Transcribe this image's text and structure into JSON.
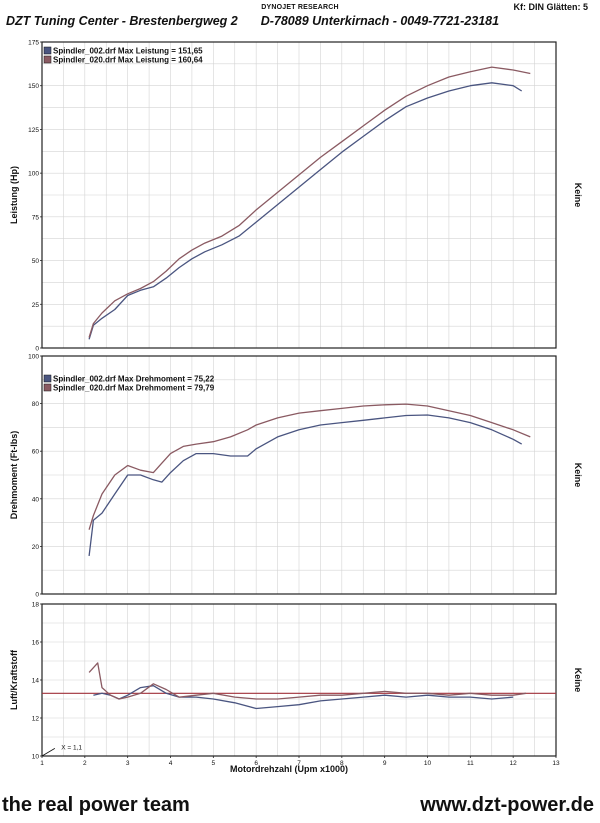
{
  "header": {
    "brand": "DYNOJET RESEARCH",
    "smoothing": "Kf: DIN  Glätten: 5",
    "company": "DZT Tuning Center - Brestenbergweg 2",
    "address": "D-78089 Unterkirnach - 0049-7721-23181"
  },
  "footer": {
    "slogan": "the real power team",
    "website": "www.dzt-power.de"
  },
  "colors": {
    "run_002": "#4a5580",
    "run_020": "#8a5a62",
    "afr_target": "#a0303a",
    "grid": "#d4d4d4",
    "frame": "#222222"
  },
  "chart_data": [
    {
      "type": "line",
      "ylabel": "Leistung (Hp)",
      "right_label": "Keine",
      "ylim": [
        0,
        175
      ],
      "yticks": [
        0,
        25,
        50,
        75,
        100,
        125,
        150,
        175
      ],
      "xlim": [
        1,
        13
      ],
      "legend_position": "top-left",
      "series": [
        {
          "name": "Spindler_002.drf Max Leistung = 151,65",
          "x": [
            2.1,
            2.2,
            2.4,
            2.7,
            3.0,
            3.3,
            3.6,
            3.9,
            4.2,
            4.5,
            4.8,
            5.2,
            5.6,
            6.0,
            6.5,
            7.0,
            7.5,
            8.0,
            8.5,
            9.0,
            9.5,
            10.0,
            10.5,
            11.0,
            11.5,
            12.0,
            12.2
          ],
          "values": [
            5,
            13,
            17,
            22,
            30,
            33,
            35,
            40,
            46,
            51,
            55,
            59,
            64,
            72,
            82,
            92,
            102,
            112,
            121,
            130,
            138,
            143,
            147,
            150,
            151.65,
            150,
            147
          ]
        },
        {
          "name": "Spindler_020.drf Max Leistung = 160,64",
          "x": [
            2.1,
            2.2,
            2.4,
            2.7,
            3.0,
            3.3,
            3.6,
            3.9,
            4.2,
            4.5,
            4.8,
            5.2,
            5.6,
            6.0,
            6.5,
            7.0,
            7.5,
            8.0,
            8.5,
            9.0,
            9.5,
            10.0,
            10.5,
            11.0,
            11.5,
            12.0,
            12.4
          ],
          "values": [
            6,
            14,
            20,
            27,
            31,
            34,
            38,
            44,
            51,
            56,
            60,
            64,
            70,
            79,
            89,
            99,
            109,
            118,
            127,
            136,
            144,
            150,
            155,
            158,
            160.64,
            159,
            157
          ]
        }
      ]
    },
    {
      "type": "line",
      "ylabel": "Drehmoment (Ft-lbs)",
      "right_label": "Keine",
      "ylim": [
        0,
        100
      ],
      "yticks": [
        0,
        20,
        40,
        60,
        80,
        100
      ],
      "xlim": [
        1,
        13
      ],
      "legend_position": "top-left",
      "series": [
        {
          "name": "Spindler_002.drf Max Drehmoment = 75,22",
          "x": [
            2.1,
            2.2,
            2.4,
            2.7,
            3.0,
            3.3,
            3.6,
            3.8,
            4.0,
            4.3,
            4.6,
            5.0,
            5.4,
            5.8,
            6.0,
            6.5,
            7.0,
            7.5,
            8.0,
            8.5,
            9.0,
            9.5,
            10.0,
            10.5,
            11.0,
            11.5,
            12.0,
            12.2
          ],
          "values": [
            16,
            31,
            34,
            42,
            50,
            50,
            48,
            47,
            51,
            56,
            59,
            59,
            58,
            58,
            61,
            66,
            69,
            71,
            72,
            73,
            74,
            75,
            75.22,
            74,
            72,
            69,
            65,
            63
          ]
        },
        {
          "name": "Spindler_020.drf Max Drehmoment = 79,79",
          "x": [
            2.1,
            2.2,
            2.4,
            2.7,
            3.0,
            3.3,
            3.6,
            3.8,
            4.0,
            4.3,
            4.6,
            5.0,
            5.4,
            5.8,
            6.0,
            6.5,
            7.0,
            7.5,
            8.0,
            8.5,
            9.0,
            9.5,
            10.0,
            10.5,
            11.0,
            11.5,
            12.0,
            12.4
          ],
          "values": [
            27,
            33,
            42,
            50,
            54,
            52,
            51,
            55,
            59,
            62,
            63,
            64,
            66,
            69,
            71,
            74,
            76,
            77,
            78,
            79,
            79.5,
            79.79,
            79,
            77,
            75,
            72,
            69,
            66
          ]
        }
      ]
    },
    {
      "type": "line",
      "ylabel": "Luft/Kraftstoff",
      "right_label": "Keine",
      "xlabel": "Motordrehzahl (Upm x1000)",
      "ylim": [
        10,
        18
      ],
      "yticks": [
        10,
        12,
        14,
        16,
        18
      ],
      "xlim": [
        1,
        13
      ],
      "xticks": [
        1,
        2,
        3,
        4,
        5,
        6,
        7,
        8,
        9,
        10,
        11,
        12,
        13
      ],
      "annotation": "X = 1,1",
      "reference_line": 13.3,
      "series": [
        {
          "name": "Spindler_002.drf",
          "x": [
            2.2,
            2.4,
            2.6,
            2.8,
            3.0,
            3.3,
            3.6,
            3.9,
            4.2,
            4.6,
            5.0,
            5.5,
            6.0,
            6.5,
            7.0,
            7.5,
            8.0,
            8.5,
            9.0,
            9.5,
            10.0,
            10.5,
            11.0,
            11.5,
            12.0
          ],
          "values": [
            13.2,
            13.3,
            13.2,
            13.0,
            13.2,
            13.6,
            13.7,
            13.3,
            13.1,
            13.1,
            13.0,
            12.8,
            12.5,
            12.6,
            12.7,
            12.9,
            13.0,
            13.1,
            13.2,
            13.1,
            13.2,
            13.1,
            13.1,
            13.0,
            13.1
          ]
        },
        {
          "name": "Spindler_020.drf",
          "x": [
            2.1,
            2.3,
            2.4,
            2.6,
            2.8,
            3.0,
            3.3,
            3.6,
            3.9,
            4.2,
            4.6,
            5.0,
            5.5,
            6.0,
            6.5,
            7.0,
            7.5,
            8.0,
            8.5,
            9.0,
            9.5,
            10.0,
            10.5,
            11.0,
            11.5,
            12.0,
            12.3
          ],
          "values": [
            14.4,
            14.9,
            13.6,
            13.2,
            13.0,
            13.1,
            13.3,
            13.8,
            13.5,
            13.1,
            13.2,
            13.3,
            13.1,
            13.0,
            13.0,
            13.1,
            13.2,
            13.2,
            13.3,
            13.4,
            13.3,
            13.3,
            13.2,
            13.3,
            13.2,
            13.2,
            13.3
          ]
        }
      ]
    }
  ]
}
